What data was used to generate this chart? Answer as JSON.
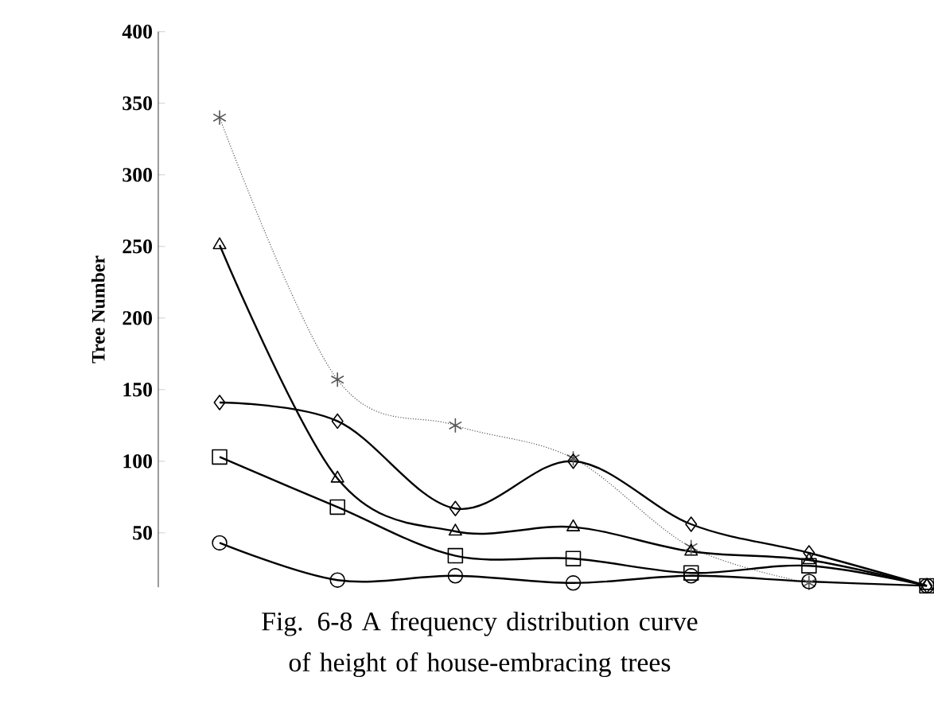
{
  "chart_data": {
    "type": "line",
    "title": "Fig. 6-8 A frequency distribution curve of height of house-embracing trees",
    "ylabel": "Tree Number",
    "categories": [
      null,
      null,
      null,
      null,
      null,
      null,
      null
    ],
    "series": [
      {
        "color": "#555555",
        "marker": "cross",
        "line_style": "dotted",
        "values": [
          340,
          157,
          125,
          102,
          40,
          15,
          null
        ]
      },
      {
        "color": "#000000",
        "marker": "diamond",
        "line_style": "solid",
        "values": [
          141,
          128,
          67,
          100,
          56,
          36,
          13
        ]
      },
      {
        "color": "#000000",
        "marker": "triangle",
        "line_style": "solid",
        "values": [
          251,
          88,
          51,
          54,
          37,
          31,
          13
        ]
      },
      {
        "color": "#000000",
        "marker": "square",
        "line_style": "solid",
        "values": [
          103,
          68,
          34,
          32,
          22,
          27,
          13
        ]
      },
      {
        "color": "#000000",
        "marker": "circle",
        "line_style": "solid",
        "values": [
          43,
          17,
          20,
          15,
          20,
          16,
          13
        ]
      }
    ],
    "ylim": [
      12,
      400
    ],
    "yticks": [
      50,
      100,
      150,
      200,
      250,
      300,
      350,
      400
    ],
    "tick_labels": "y"
  }
}
